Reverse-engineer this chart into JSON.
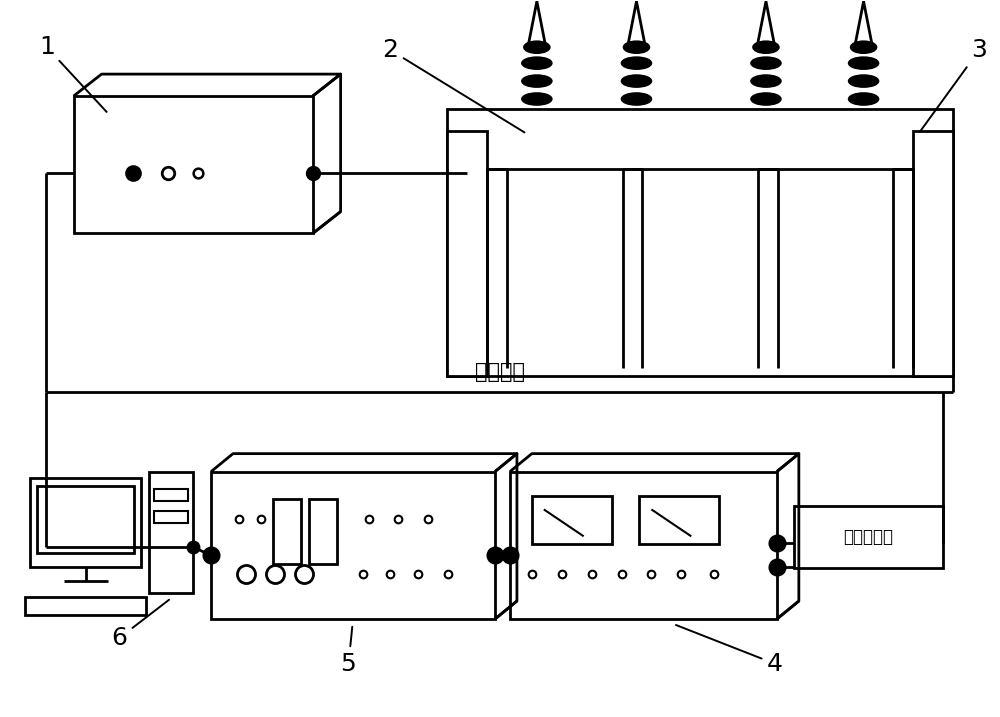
{
  "bg_color": "#ffffff",
  "lc": "#000000",
  "lw": 2.0,
  "ref_signal_text": "参考信号",
  "detector_text": "光电探测器",
  "label_1": "1",
  "label_2": "2",
  "label_3": "3",
  "label_4": "4",
  "label_5": "5",
  "label_6": "6",
  "font_size_labels": 18,
  "font_size_detector": 12,
  "font_size_ref": 15
}
